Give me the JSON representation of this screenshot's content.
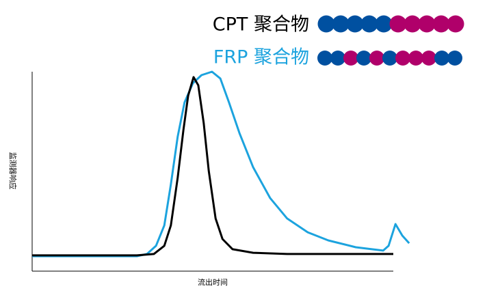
{
  "chart_data": {
    "type": "line",
    "xlabel": "流出时间",
    "ylabel": "监测器响应",
    "xlim": [
      0,
      100
    ],
    "ylim": [
      0,
      100
    ],
    "series": [
      {
        "name": "CPT 聚合物",
        "color": "#000000",
        "x": [
          0,
          29.0,
          33.7,
          36.6,
          38.4,
          40.3,
          41.9,
          43.2,
          44.7,
          46.0,
          47.5,
          48.9,
          50.8,
          52.7,
          55.5,
          61.2,
          70.6,
          100
        ],
        "values": [
          7.9,
          7.9,
          8.6,
          12.7,
          22.9,
          46.9,
          70.9,
          88.0,
          97.3,
          93.2,
          74.3,
          50.3,
          26.4,
          16.1,
          11.0,
          9.2,
          8.6,
          8.6
        ]
      },
      {
        "name": "FRP 聚合物",
        "color": "#1ca3de",
        "x": [
          0,
          29.0,
          31.8,
          34.3,
          36.6,
          38.4,
          40.3,
          42.2,
          44.5,
          46.9,
          49.8,
          52.1,
          54.5,
          57.4,
          61.2,
          65.9,
          70.6,
          76.3,
          82.0,
          89.6,
          97.2,
          98.7,
          100.6,
          102.5,
          104.4
        ],
        "values": [
          7.5,
          7.5,
          8.6,
          12.7,
          22.9,
          43.5,
          67.5,
          84.6,
          94.2,
          98.3,
          100,
          96.6,
          84.6,
          69.2,
          52.1,
          36.6,
          26.4,
          19.5,
          15.4,
          12.0,
          10.3,
          12.7,
          23.6,
          17.8,
          14.0
        ]
      }
    ]
  }
}
